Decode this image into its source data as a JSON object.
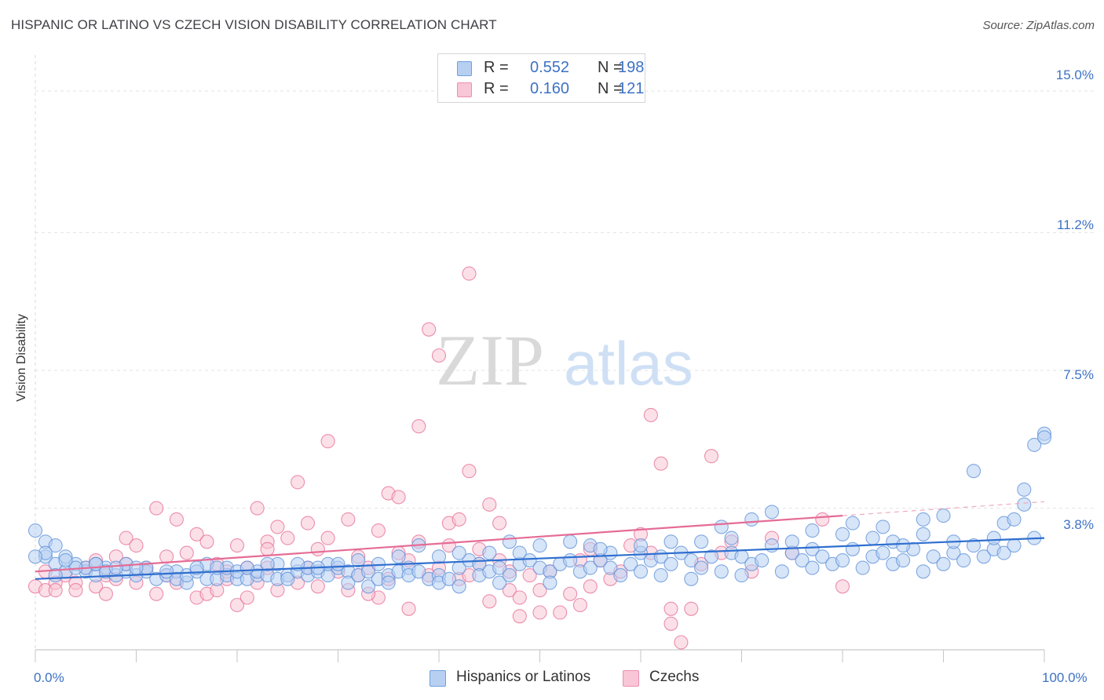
{
  "title": "HISPANIC OR LATINO VS CZECH VISION DISABILITY CORRELATION CHART",
  "source": "Source: ZipAtlas.com",
  "watermark": {
    "zip": "ZIP",
    "atlas": "atlas"
  },
  "stats": [
    {
      "r_label": "R =",
      "r": "0.552",
      "n_label": "N =",
      "n": "198",
      "color": "#6f9fe0",
      "fill": "#b7d0f2"
    },
    {
      "r_label": "R =",
      "r": "0.160",
      "n_label": "N =",
      "n": "121",
      "color": "#ec8fb0",
      "fill": "#f8c6d6"
    }
  ],
  "legend": [
    {
      "label": "Hispanics or Latinos",
      "fill": "#b7d0f2",
      "color": "#6f9fe0"
    },
    {
      "label": "Czechs",
      "fill": "#f8c6d6",
      "color": "#ec8fb0"
    }
  ],
  "chart_data": {
    "type": "scatter",
    "title": "HISPANIC OR LATINO VS CZECH VISION DISABILITY CORRELATION CHART",
    "xlabel": "",
    "ylabel": "Vision Disability",
    "xlim": [
      0,
      100
    ],
    "ylim": [
      0,
      15.8
    ],
    "x_tick_labels": [
      "0.0%",
      "100.0%"
    ],
    "y_ticks": [
      3.8,
      7.5,
      11.2,
      15.0
    ],
    "y_tick_labels": [
      "3.8%",
      "7.5%",
      "11.2%",
      "15.0%"
    ],
    "grid": "horizontal dashed",
    "legend_position": "bottom-center",
    "series": [
      {
        "name": "Hispanics or Latinos",
        "color": "#5b8fd8",
        "fill": "#b7d0f2",
        "trend": {
          "x": [
            0,
            100
          ],
          "y": [
            1.9,
            3.0
          ]
        },
        "points": [
          [
            1,
            2.9
          ],
          [
            1,
            2.5
          ],
          [
            2,
            2.8
          ],
          [
            2,
            2.3
          ],
          [
            3,
            2.1
          ],
          [
            3,
            2.5
          ],
          [
            4,
            2.3
          ],
          [
            5,
            2.1
          ],
          [
            5,
            2.2
          ],
          [
            6,
            2.0
          ],
          [
            6,
            2.3
          ],
          [
            7,
            2.2
          ],
          [
            7,
            2.1
          ],
          [
            8,
            2.0
          ],
          [
            9,
            2.1
          ],
          [
            9,
            2.3
          ],
          [
            10,
            2.0
          ],
          [
            11,
            2.1
          ],
          [
            11,
            2.2
          ],
          [
            12,
            1.9
          ],
          [
            13,
            2.0
          ],
          [
            14,
            2.1
          ],
          [
            14,
            1.9
          ],
          [
            15,
            1.8
          ],
          [
            15,
            2.0
          ],
          [
            16,
            2.1
          ],
          [
            17,
            1.9
          ],
          [
            17,
            2.3
          ],
          [
            18,
            1.9
          ],
          [
            19,
            2.0
          ],
          [
            19,
            2.2
          ],
          [
            20,
            1.9
          ],
          [
            20,
            2.1
          ],
          [
            21,
            1.9
          ],
          [
            22,
            2.0
          ],
          [
            22,
            2.1
          ],
          [
            23,
            2.0
          ],
          [
            24,
            1.9
          ],
          [
            24,
            2.3
          ],
          [
            25,
            2.0
          ],
          [
            25,
            1.9
          ],
          [
            26,
            2.1
          ],
          [
            27,
            2.0
          ],
          [
            27,
            2.2
          ],
          [
            28,
            2.1
          ],
          [
            29,
            2.0
          ],
          [
            29,
            2.3
          ],
          [
            30,
            2.2
          ],
          [
            31,
            2.1
          ],
          [
            31,
            1.8
          ],
          [
            32,
            2.0
          ],
          [
            33,
            1.7
          ],
          [
            33,
            2.1
          ],
          [
            34,
            1.9
          ],
          [
            35,
            2.0
          ],
          [
            35,
            1.8
          ],
          [
            36,
            2.1
          ],
          [
            37,
            2.2
          ],
          [
            37,
            2.0
          ],
          [
            38,
            2.1
          ],
          [
            38,
            2.8
          ],
          [
            39,
            1.9
          ],
          [
            40,
            2.0
          ],
          [
            40,
            1.8
          ],
          [
            41,
            1.9
          ],
          [
            42,
            2.2
          ],
          [
            42,
            1.7
          ],
          [
            43,
            2.4
          ],
          [
            44,
            2.3
          ],
          [
            44,
            2.0
          ],
          [
            45,
            2.1
          ],
          [
            46,
            2.2
          ],
          [
            46,
            1.8
          ],
          [
            47,
            2.0
          ],
          [
            48,
            2.3
          ],
          [
            48,
            2.6
          ],
          [
            49,
            2.4
          ],
          [
            50,
            2.2
          ],
          [
            51,
            2.1
          ],
          [
            51,
            1.8
          ],
          [
            52,
            2.3
          ],
          [
            53,
            2.4
          ],
          [
            54,
            2.1
          ],
          [
            55,
            2.2
          ],
          [
            55,
            2.8
          ],
          [
            56,
            2.4
          ],
          [
            57,
            2.6
          ],
          [
            57,
            2.2
          ],
          [
            58,
            2.0
          ],
          [
            59,
            2.3
          ],
          [
            60,
            2.1
          ],
          [
            60,
            2.6
          ],
          [
            61,
            2.4
          ],
          [
            62,
            2.5
          ],
          [
            62,
            2.0
          ],
          [
            63,
            2.3
          ],
          [
            64,
            2.6
          ],
          [
            65,
            2.4
          ],
          [
            65,
            1.9
          ],
          [
            66,
            2.2
          ],
          [
            67,
            2.5
          ],
          [
            68,
            2.1
          ],
          [
            68,
            3.3
          ],
          [
            69,
            2.6
          ],
          [
            70,
            2.5
          ],
          [
            70,
            2.0
          ],
          [
            71,
            2.3
          ],
          [
            72,
            2.4
          ],
          [
            73,
            2.8
          ],
          [
            73,
            3.7
          ],
          [
            74,
            2.1
          ],
          [
            75,
            2.6
          ],
          [
            76,
            2.4
          ],
          [
            77,
            2.2
          ],
          [
            77,
            2.7
          ],
          [
            78,
            2.5
          ],
          [
            79,
            2.3
          ],
          [
            80,
            2.4
          ],
          [
            81,
            2.7
          ],
          [
            82,
            2.2
          ],
          [
            83,
            2.5
          ],
          [
            83,
            3.0
          ],
          [
            84,
            2.6
          ],
          [
            85,
            2.3
          ],
          [
            85,
            2.9
          ],
          [
            86,
            2.4
          ],
          [
            87,
            2.7
          ],
          [
            88,
            2.1
          ],
          [
            88,
            3.1
          ],
          [
            89,
            2.5
          ],
          [
            90,
            2.3
          ],
          [
            90,
            3.6
          ],
          [
            91,
            2.6
          ],
          [
            92,
            2.4
          ],
          [
            93,
            2.8
          ],
          [
            93,
            4.8
          ],
          [
            94,
            2.5
          ],
          [
            95,
            2.7
          ],
          [
            96,
            3.4
          ],
          [
            96,
            2.6
          ],
          [
            97,
            3.5
          ],
          [
            98,
            4.3
          ],
          [
            98,
            3.9
          ],
          [
            99,
            5.5
          ],
          [
            100,
            5.8
          ],
          [
            100,
            5.7
          ],
          [
            88,
            3.5
          ],
          [
            84,
            3.3
          ],
          [
            80,
            3.1
          ],
          [
            77,
            3.2
          ],
          [
            71,
            3.5
          ],
          [
            66,
            2.9
          ],
          [
            63,
            2.9
          ],
          [
            60,
            2.8
          ],
          [
            56,
            2.7
          ],
          [
            53,
            2.9
          ],
          [
            50,
            2.8
          ],
          [
            47,
            2.9
          ],
          [
            45,
            2.6
          ],
          [
            42,
            2.6
          ],
          [
            40,
            2.5
          ],
          [
            36,
            2.5
          ],
          [
            34,
            2.3
          ],
          [
            32,
            2.4
          ],
          [
            30,
            2.3
          ],
          [
            28,
            2.2
          ],
          [
            26,
            2.3
          ],
          [
            23,
            2.3
          ],
          [
            21,
            2.2
          ],
          [
            18,
            2.2
          ],
          [
            16,
            2.2
          ],
          [
            13,
            2.1
          ],
          [
            10,
            2.2
          ],
          [
            8,
            2.2
          ],
          [
            6,
            2.3
          ],
          [
            4,
            2.2
          ],
          [
            3,
            2.4
          ],
          [
            2,
            2.0
          ],
          [
            1,
            2.6
          ],
          [
            0,
            2.5
          ],
          [
            0,
            3.2
          ],
          [
            75,
            2.9
          ],
          [
            86,
            2.8
          ],
          [
            91,
            2.9
          ],
          [
            95,
            3.0
          ],
          [
            97,
            2.8
          ],
          [
            99,
            3.0
          ],
          [
            81,
            3.4
          ],
          [
            69,
            3.0
          ]
        ]
      },
      {
        "name": "Czechs",
        "color": "#e56c96",
        "fill": "#f8c6d6",
        "trend": {
          "x": [
            0,
            80
          ],
          "y": [
            2.1,
            3.6
          ]
        },
        "points": [
          [
            0,
            1.7
          ],
          [
            1,
            1.6
          ],
          [
            1,
            2.1
          ],
          [
            2,
            1.8
          ],
          [
            2,
            1.6
          ],
          [
            3,
            2.0
          ],
          [
            4,
            1.8
          ],
          [
            4,
            1.6
          ],
          [
            5,
            2.2
          ],
          [
            6,
            1.7
          ],
          [
            6,
            2.4
          ],
          [
            7,
            2.0
          ],
          [
            7,
            1.5
          ],
          [
            8,
            2.5
          ],
          [
            8,
            1.9
          ],
          [
            9,
            2.3
          ],
          [
            9,
            3.0
          ],
          [
            10,
            1.8
          ],
          [
            10,
            2.8
          ],
          [
            11,
            2.2
          ],
          [
            12,
            1.5
          ],
          [
            12,
            3.8
          ],
          [
            13,
            2.0
          ],
          [
            13,
            2.5
          ],
          [
            14,
            3.5
          ],
          [
            14,
            1.8
          ],
          [
            15,
            2.6
          ],
          [
            16,
            3.1
          ],
          [
            16,
            1.4
          ],
          [
            17,
            2.9
          ],
          [
            17,
            1.5
          ],
          [
            18,
            1.6
          ],
          [
            18,
            2.3
          ],
          [
            19,
            2.1
          ],
          [
            19,
            1.9
          ],
          [
            20,
            1.2
          ],
          [
            20,
            2.8
          ],
          [
            21,
            1.4
          ],
          [
            21,
            2.2
          ],
          [
            22,
            1.8
          ],
          [
            22,
            3.8
          ],
          [
            23,
            2.9
          ],
          [
            23,
            2.2
          ],
          [
            24,
            3.3
          ],
          [
            24,
            1.6
          ],
          [
            25,
            3.0
          ],
          [
            26,
            1.8
          ],
          [
            26,
            4.5
          ],
          [
            27,
            2.2
          ],
          [
            27,
            3.4
          ],
          [
            28,
            1.7
          ],
          [
            28,
            2.7
          ],
          [
            29,
            3.0
          ],
          [
            29,
            5.6
          ],
          [
            30,
            2.1
          ],
          [
            31,
            1.6
          ],
          [
            31,
            3.5
          ],
          [
            32,
            2.5
          ],
          [
            32,
            2.0
          ],
          [
            33,
            2.2
          ],
          [
            34,
            3.2
          ],
          [
            34,
            1.4
          ],
          [
            35,
            4.2
          ],
          [
            35,
            1.9
          ],
          [
            36,
            2.6
          ],
          [
            36,
            4.1
          ],
          [
            37,
            1.1
          ],
          [
            37,
            2.4
          ],
          [
            38,
            6.0
          ],
          [
            38,
            2.9
          ],
          [
            39,
            2.0
          ],
          [
            39,
            8.6
          ],
          [
            40,
            7.9
          ],
          [
            40,
            2.2
          ],
          [
            41,
            3.4
          ],
          [
            41,
            2.8
          ],
          [
            42,
            1.9
          ],
          [
            42,
            3.5
          ],
          [
            43,
            2.0
          ],
          [
            43,
            4.8
          ],
          [
            44,
            2.3
          ],
          [
            44,
            2.7
          ],
          [
            45,
            3.9
          ],
          [
            45,
            1.3
          ],
          [
            46,
            3.4
          ],
          [
            46,
            2.4
          ],
          [
            47,
            1.6
          ],
          [
            47,
            2.1
          ],
          [
            48,
            1.4
          ],
          [
            48,
            0.9
          ],
          [
            49,
            2.0
          ],
          [
            50,
            1.6
          ],
          [
            50,
            1.0
          ],
          [
            51,
            2.1
          ],
          [
            52,
            1.0
          ],
          [
            53,
            1.5
          ],
          [
            54,
            1.2
          ],
          [
            54,
            2.4
          ],
          [
            55,
            1.7
          ],
          [
            56,
            2.4
          ],
          [
            57,
            1.9
          ],
          [
            58,
            2.1
          ],
          [
            59,
            2.8
          ],
          [
            60,
            3.1
          ],
          [
            61,
            6.3
          ],
          [
            62,
            5.0
          ],
          [
            63,
            1.1
          ],
          [
            63,
            0.7
          ],
          [
            64,
            0.2
          ],
          [
            65,
            1.1
          ],
          [
            66,
            2.3
          ],
          [
            67,
            5.2
          ],
          [
            68,
            2.6
          ],
          [
            69,
            2.9
          ],
          [
            71,
            2.1
          ],
          [
            73,
            3.0
          ],
          [
            75,
            2.6
          ],
          [
            80,
            1.7
          ],
          [
            78,
            3.5
          ],
          [
            61,
            2.6
          ],
          [
            55,
            2.7
          ],
          [
            43,
            10.1
          ],
          [
            33,
            1.5
          ],
          [
            23,
            2.7
          ]
        ]
      }
    ]
  }
}
